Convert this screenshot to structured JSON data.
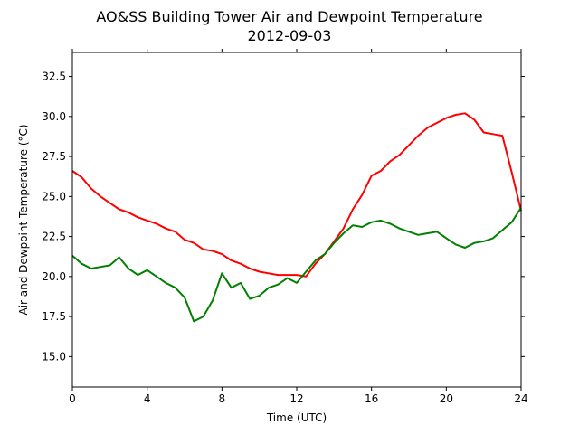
{
  "chart_data": {
    "type": "line",
    "title": "AO&SS Building Tower Air and Dewpoint Temperature",
    "subtitle": "2012-09-03",
    "xlabel": "Time (UTC)",
    "ylabel": "Air and Dewpoint Temperature (°C)",
    "xlim": [
      0,
      24
    ],
    "ylim": [
      13.1,
      34.0
    ],
    "xticks": [
      0,
      4,
      8,
      12,
      16,
      20,
      24
    ],
    "yticks": [
      15.0,
      17.5,
      20.0,
      22.5,
      25.0,
      27.5,
      30.0,
      32.5
    ],
    "ytick_labels": [
      "15.0",
      "17.5",
      "20.0",
      "22.5",
      "25.0",
      "27.5",
      "30.0",
      "32.5"
    ],
    "grid": false,
    "series": [
      {
        "color": "#ff0000",
        "x": [
          0,
          0.5,
          1,
          1.5,
          2,
          2.5,
          3,
          3.5,
          4,
          4.5,
          5,
          5.5,
          6,
          6.5,
          7,
          7.5,
          8,
          8.5,
          9,
          9.5,
          10,
          10.5,
          11,
          11.5,
          12,
          12.5,
          13,
          13.5,
          14,
          14.5,
          15,
          15.5,
          16,
          16.5,
          17,
          17.5,
          18,
          18.5,
          19,
          19.5,
          20,
          20.5,
          21,
          21.5,
          22,
          22.5,
          23,
          23.5,
          24
        ],
        "values": [
          26.6,
          26.2,
          25.5,
          25.0,
          24.6,
          24.2,
          24.0,
          23.7,
          23.5,
          23.3,
          23.0,
          22.8,
          22.3,
          22.1,
          21.7,
          21.6,
          21.4,
          21.0,
          20.8,
          20.5,
          20.3,
          20.2,
          20.1,
          20.1,
          20.1,
          20.0,
          20.8,
          21.4,
          22.2,
          23.0,
          24.2,
          25.1,
          26.3,
          26.6,
          27.2,
          27.6,
          28.2,
          28.8,
          29.3,
          29.6,
          29.9,
          30.1,
          30.2,
          29.8,
          29.0,
          28.9,
          28.8,
          26.5,
          24.1
        ]
      },
      {
        "color": "#008000",
        "x": [
          0,
          0.5,
          1,
          1.5,
          2,
          2.5,
          3,
          3.5,
          4,
          4.5,
          5,
          5.5,
          6,
          6.5,
          7,
          7.5,
          8,
          8.5,
          9,
          9.5,
          10,
          10.5,
          11,
          11.5,
          12,
          12.5,
          13,
          13.5,
          14,
          14.5,
          15,
          15.5,
          16,
          16.5,
          17,
          17.5,
          18,
          18.5,
          19,
          19.5,
          20,
          20.5,
          21,
          21.5,
          22,
          22.5,
          23,
          23.5,
          24
        ],
        "values": [
          21.3,
          20.8,
          20.5,
          20.6,
          20.7,
          21.2,
          20.5,
          20.1,
          20.4,
          20.0,
          19.6,
          19.3,
          18.7,
          17.2,
          17.5,
          18.5,
          20.2,
          19.3,
          19.6,
          18.6,
          18.8,
          19.3,
          19.5,
          19.9,
          19.6,
          20.3,
          21.0,
          21.4,
          22.1,
          22.7,
          23.2,
          23.1,
          23.4,
          23.5,
          23.3,
          23.0,
          22.8,
          22.6,
          22.7,
          22.8,
          22.4,
          22.0,
          21.8,
          22.1,
          22.2,
          22.4,
          22.9,
          23.4,
          24.3
        ]
      }
    ]
  }
}
